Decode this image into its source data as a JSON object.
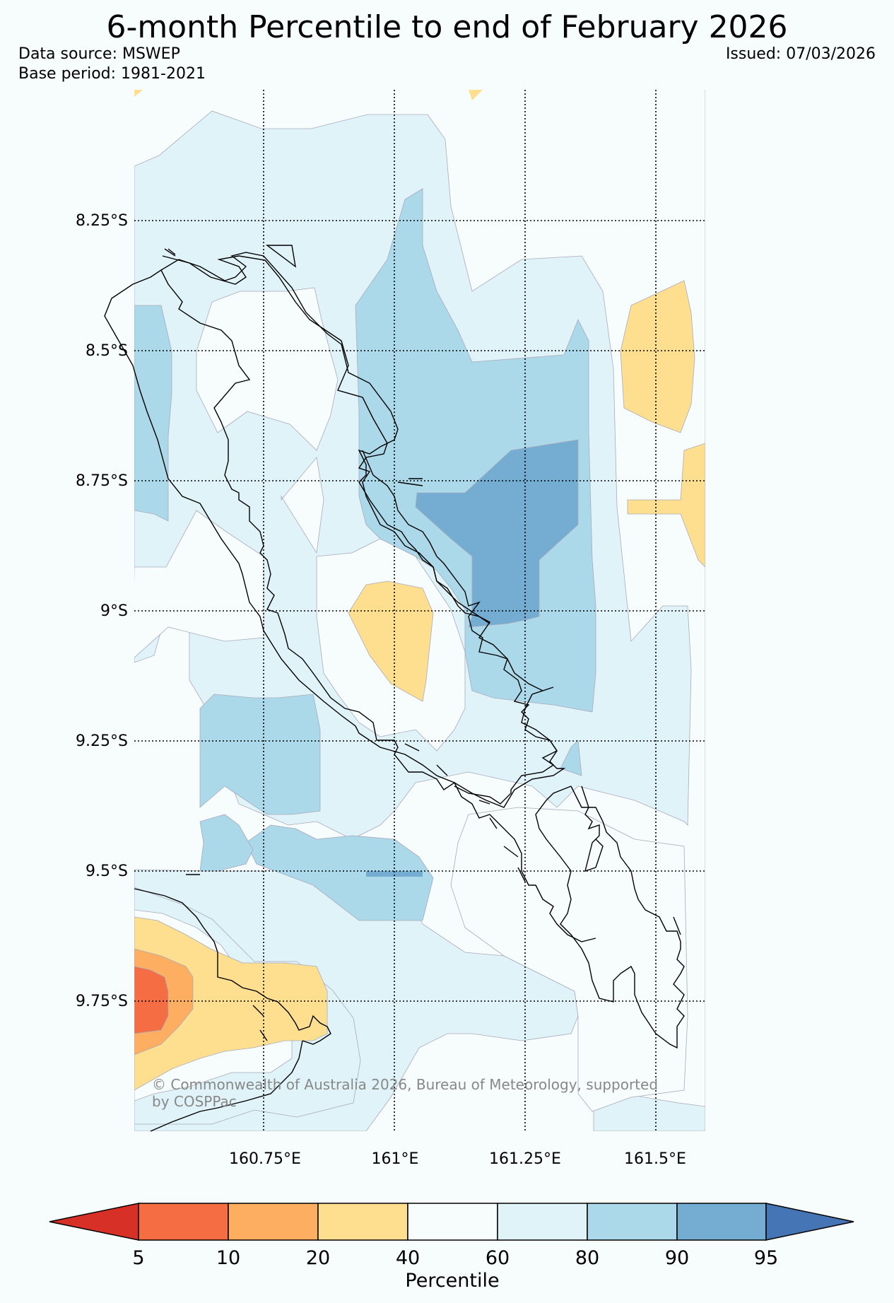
{
  "header": {
    "title": "6-month Percentile to end of February 2026",
    "data_source": "Data source: MSWEP",
    "base_period": "Base period: 1981-2021",
    "issued": "Issued: 07/03/2026"
  },
  "map": {
    "lat_labels": [
      "8.25°S",
      "8.5°S",
      "8.75°S",
      "9°S",
      "9.25°S",
      "9.5°S",
      "9.75°S"
    ],
    "lon_labels": [
      "160.75°E",
      "161°E",
      "161.25°E",
      "161.5°E"
    ],
    "copyright_line1": "© Commonwealth of Australia 2026, Bureau of Meteorology, supported",
    "copyright_line2": "by COSPPac",
    "region_colors": {
      "20-40": "#fedf8f",
      "40-60": "#f7fcfd",
      "60-80": "#e0f3f8",
      "80-90": "#abd9e9",
      "90-95": "#74add1",
      "10-20": "#fdae61",
      "5-10": "#f46d43"
    }
  },
  "colorbar": {
    "label": "Percentile",
    "ticks": [
      "5",
      "10",
      "20",
      "40",
      "60",
      "80",
      "90",
      "95"
    ],
    "colors": [
      "#d73027",
      "#f46d43",
      "#fdae61",
      "#fedf8f",
      "#f7fcfd",
      "#e0f3f8",
      "#abd9e9",
      "#74add1",
      "#4575b4"
    ]
  }
}
